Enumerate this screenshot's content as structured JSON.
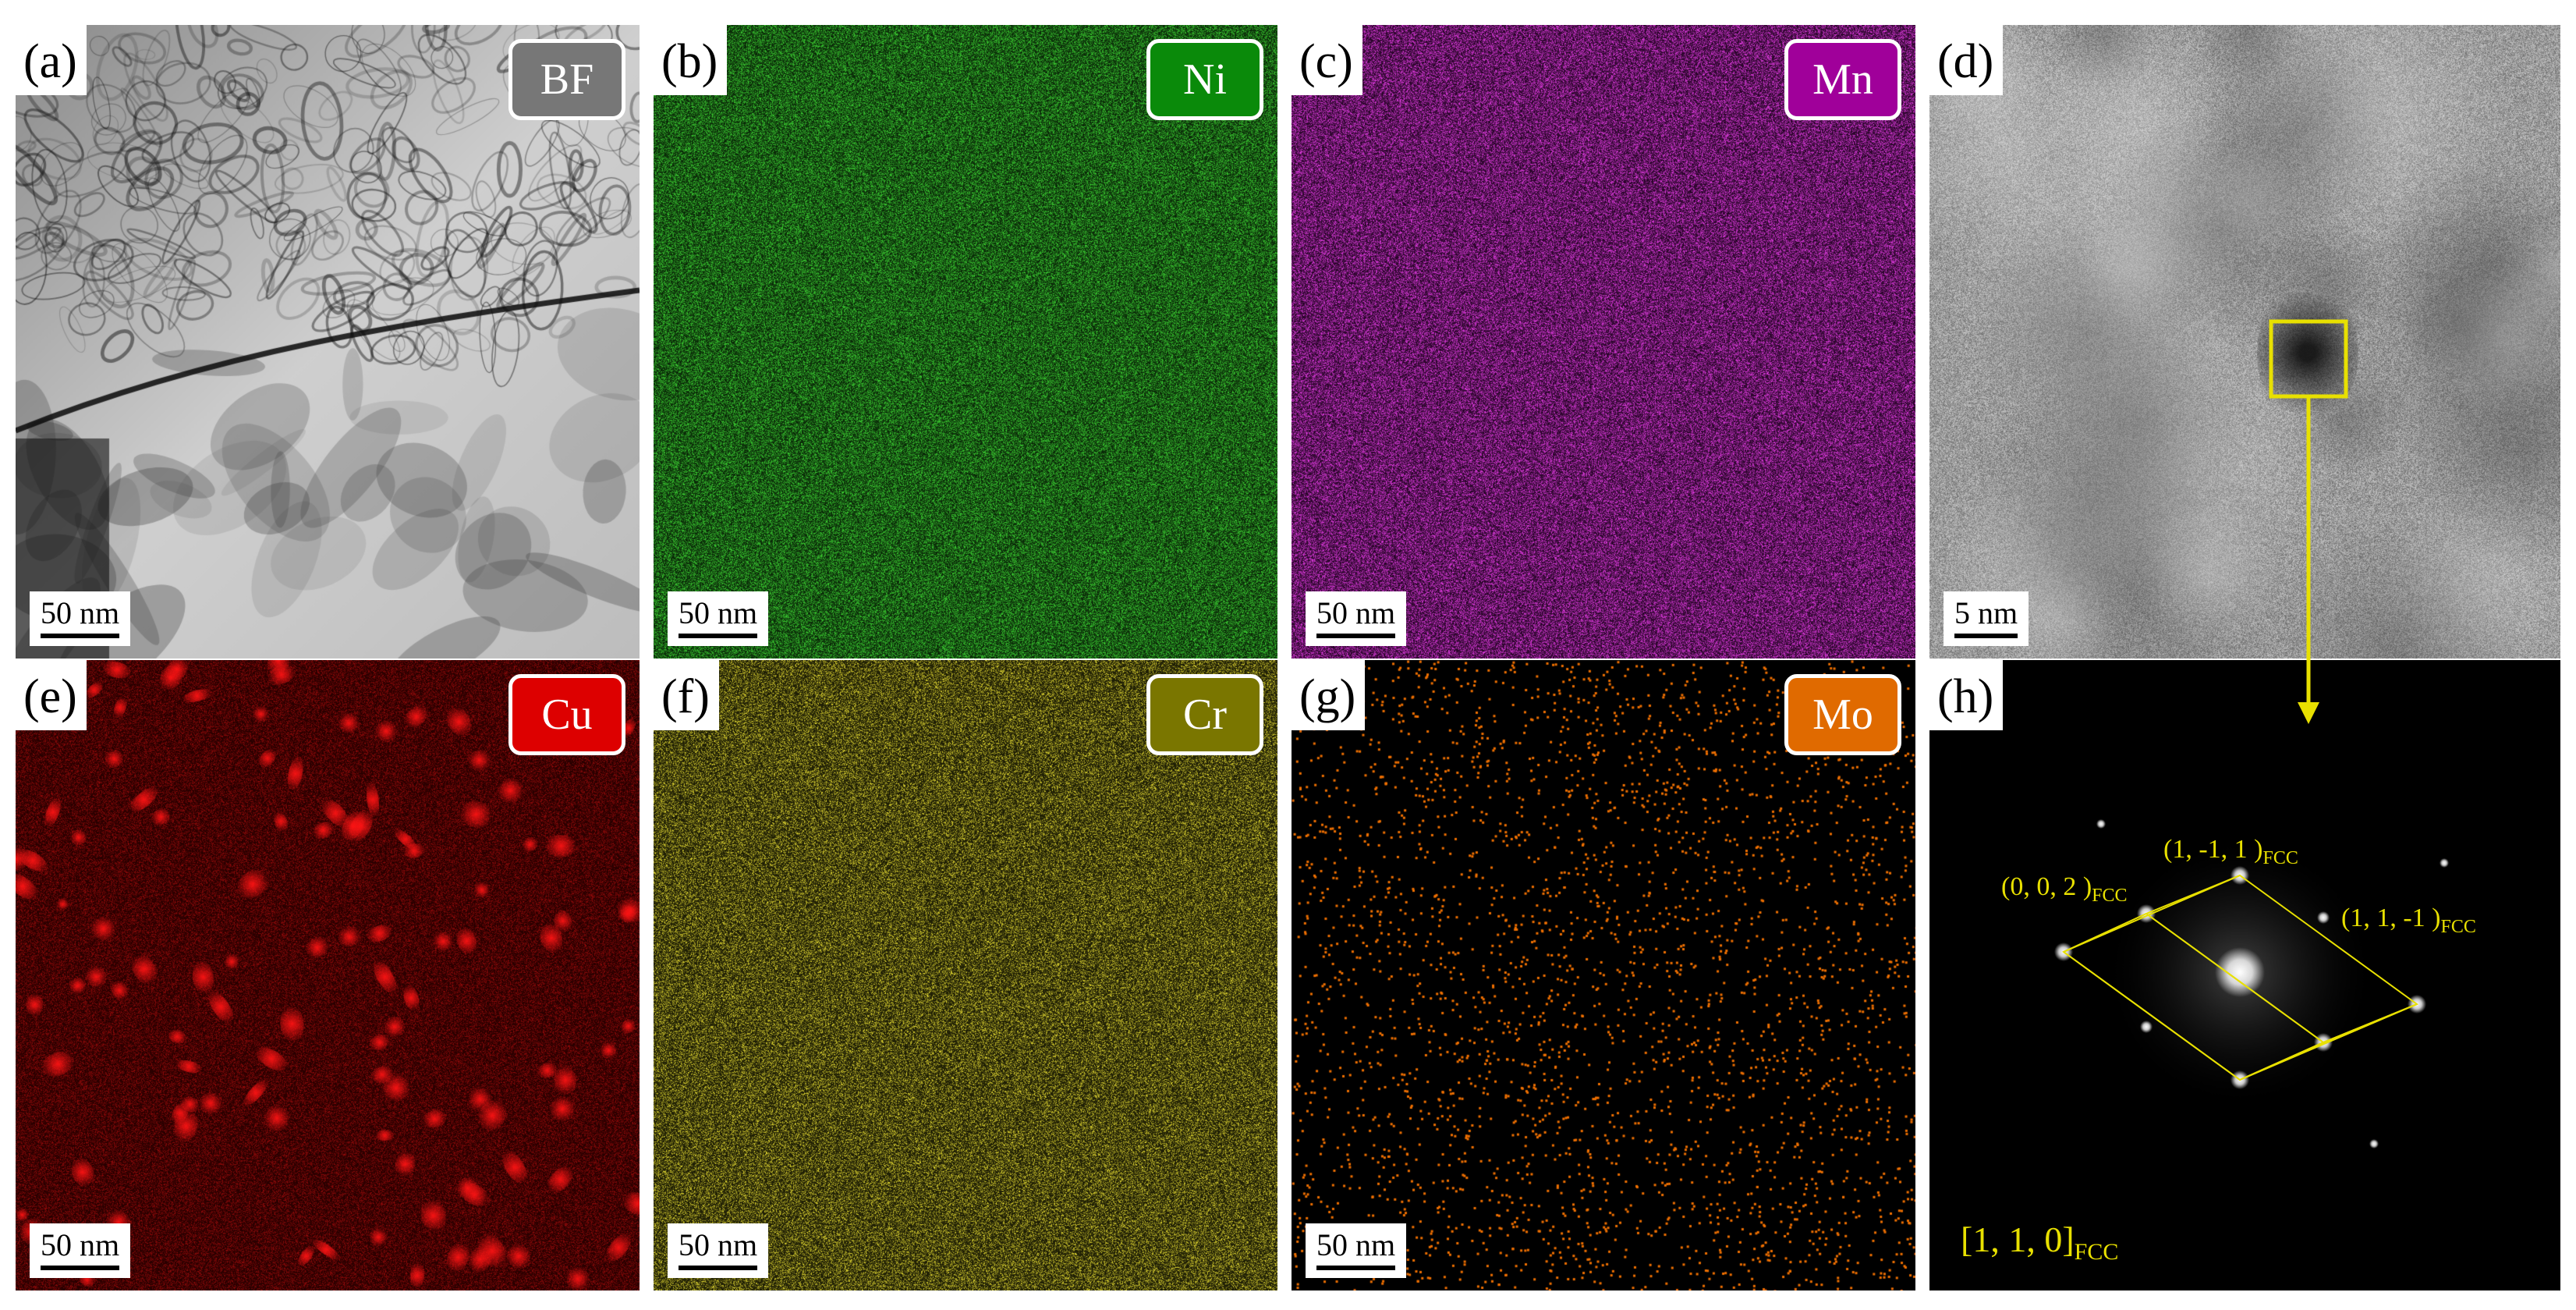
{
  "panels": [
    {
      "id": "a",
      "letter": "(a)",
      "badge": "BF",
      "badge_color": "#777777",
      "scale": "50 nm",
      "map": "bf"
    },
    {
      "id": "b",
      "letter": "(b)",
      "badge": "Ni",
      "badge_color": "#0a8a0a",
      "scale": "50 nm",
      "map": "ni"
    },
    {
      "id": "c",
      "letter": "(c)",
      "badge": "Mn",
      "badge_color": "#a0009a",
      "scale": "50 nm",
      "map": "mn"
    },
    {
      "id": "d",
      "letter": "(d)",
      "scale": "5 nm",
      "map": "hrtem"
    },
    {
      "id": "e",
      "letter": "(e)",
      "badge": "Cu",
      "badge_color": "#dd0000",
      "scale": "50 nm",
      "map": "cu"
    },
    {
      "id": "f",
      "letter": "(f)",
      "badge": "Cr",
      "badge_color": "#7a7600",
      "scale": "50 nm",
      "map": "cr"
    },
    {
      "id": "g",
      "letter": "(g)",
      "badge": "Mo",
      "badge_color": "#e06a00",
      "scale": "50 nm",
      "map": "mo"
    },
    {
      "id": "h",
      "letter": "(h)",
      "map": "fft"
    }
  ],
  "fft": {
    "spots": [
      {
        "main": "(1, -1, 1 )",
        "sub": "FCC"
      },
      {
        "main": "(0, 0, 2 )",
        "sub": "FCC"
      },
      {
        "main": "(1, 1, -1 )",
        "sub": "FCC"
      }
    ],
    "zone_axis": {
      "main": "[1, 1, 0]",
      "sub": "FCC"
    }
  },
  "colors": {
    "overlay": "#e8e000",
    "background": "#ffffff"
  }
}
